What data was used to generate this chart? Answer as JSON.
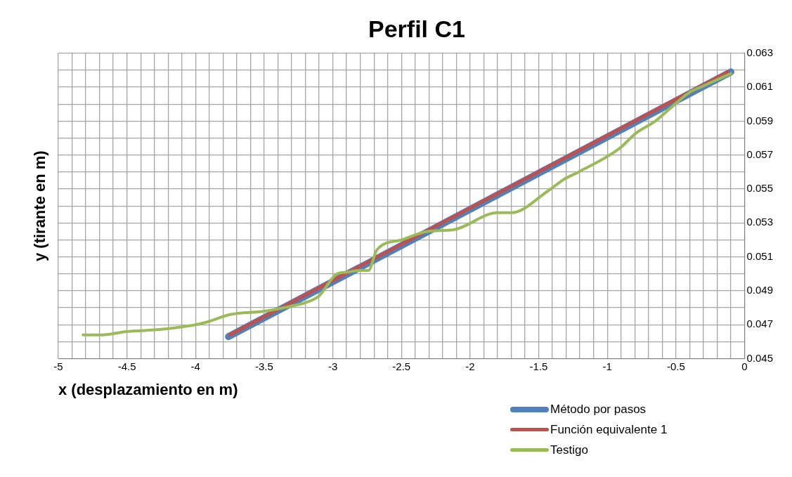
{
  "chart_data": {
    "type": "line",
    "title": "Perfil C1",
    "xlabel": "x (desplazamiento en m)",
    "ylabel": "y (tirante en m)",
    "xlim": [
      -5,
      0
    ],
    "xticks": [
      -5,
      {
        "value": -4.9,
        "label": null
      },
      {
        "value": -4.8,
        "label": null
      },
      {
        "value": -4.7,
        "label": null
      },
      {
        "value": -4.6,
        "label": null
      },
      -4.5,
      {
        "value": -4.4,
        "label": null
      },
      {
        "value": -4.3,
        "label": null
      },
      {
        "value": -4.2,
        "label": null
      },
      {
        "value": -4.1,
        "label": null
      },
      -4,
      {
        "value": -3.9,
        "label": null
      },
      {
        "value": -3.8,
        "label": null
      },
      {
        "value": -3.7,
        "label": null
      },
      {
        "value": -3.6,
        "label": null
      },
      -3.5,
      {
        "value": -3.4,
        "label": null
      },
      {
        "value": -3.3,
        "label": null
      },
      {
        "value": -3.2,
        "label": null
      },
      {
        "value": -3.1,
        "label": null
      },
      -3,
      {
        "value": -2.9,
        "label": null
      },
      {
        "value": -2.8,
        "label": null
      },
      {
        "value": -2.7,
        "label": null
      },
      {
        "value": -2.6,
        "label": null
      },
      -2.5,
      {
        "value": -2.4,
        "label": null
      },
      {
        "value": -2.3,
        "label": null
      },
      {
        "value": -2.2,
        "label": null
      },
      {
        "value": -2.1,
        "label": null
      },
      -2,
      {
        "value": -1.9,
        "label": null
      },
      {
        "value": -1.8,
        "label": null
      },
      {
        "value": -1.7,
        "label": null
      },
      {
        "value": -1.6,
        "label": null
      },
      -1.5,
      {
        "value": -1.4,
        "label": null
      },
      {
        "value": -1.3,
        "label": null
      },
      {
        "value": -1.2,
        "label": null
      },
      {
        "value": -1.1,
        "label": null
      },
      -1,
      {
        "value": -0.9,
        "label": null
      },
      {
        "value": -0.8,
        "label": null
      },
      {
        "value": -0.7,
        "label": null
      },
      {
        "value": -0.6,
        "label": null
      },
      -0.5,
      {
        "value": -0.4,
        "label": null
      },
      {
        "value": -0.3,
        "label": null
      },
      {
        "value": -0.2,
        "label": null
      },
      {
        "value": -0.1,
        "label": null
      },
      0
    ],
    "ylim": [
      0.045,
      0.063
    ],
    "yticks": [
      0.045,
      {
        "value": 0.046,
        "label": null
      },
      0.047,
      {
        "value": 0.048,
        "label": null
      },
      0.049,
      {
        "value": 0.05,
        "label": null
      },
      0.051,
      {
        "value": 0.052,
        "label": null
      },
      0.053,
      {
        "value": 0.054,
        "label": null
      },
      0.055,
      {
        "value": 0.056,
        "label": null
      },
      0.057,
      {
        "value": 0.058,
        "label": null
      },
      0.059,
      {
        "value": 0.06,
        "label": null
      },
      0.061,
      {
        "value": 0.062,
        "label": null
      },
      0.063
    ],
    "grid": true,
    "legend": "bottom right",
    "marker": "none",
    "line_style": "solid",
    "series": [
      {
        "name": "Método por pasos",
        "color": "#4f81bd",
        "x": [
          -3.76,
          -0.1
        ],
        "values": [
          0.0463,
          0.0619
        ]
      },
      {
        "name": "Función equivalente 1",
        "color": "#c0504d",
        "x": [
          -3.75,
          -0.12
        ],
        "values": [
          0.0464,
          0.0619
        ]
      },
      {
        "name": "Testigo",
        "color": "#9bbb59",
        "x": [
          -4.82,
          -4.7,
          -4.5,
          -4.3,
          -4.0,
          -3.9,
          -3.75,
          -3.5,
          -3.3,
          -3.2,
          -3.1,
          -2.97,
          -2.9,
          -2.8,
          -2.74,
          -2.68,
          -2.5,
          -2.31,
          -2.12,
          -1.8,
          -1.7,
          -1.43,
          -1.31,
          -1.21,
          -0.91,
          -0.79,
          -0.65,
          -0.535,
          -0.4,
          -0.32,
          -0.1
        ],
        "values": [
          0.0464,
          0.0464,
          0.0466,
          0.0467,
          0.047,
          0.0472,
          0.0476,
          0.0478,
          0.0481,
          0.0483,
          0.0487,
          0.05,
          0.0501,
          0.0502,
          0.0502,
          0.0514,
          0.052,
          0.0525,
          0.0526,
          0.0536,
          0.0536,
          0.0549,
          0.0556,
          0.056,
          0.0574,
          0.0583,
          0.059,
          0.0598,
          0.0607,
          0.061,
          0.0618
        ]
      }
    ]
  }
}
